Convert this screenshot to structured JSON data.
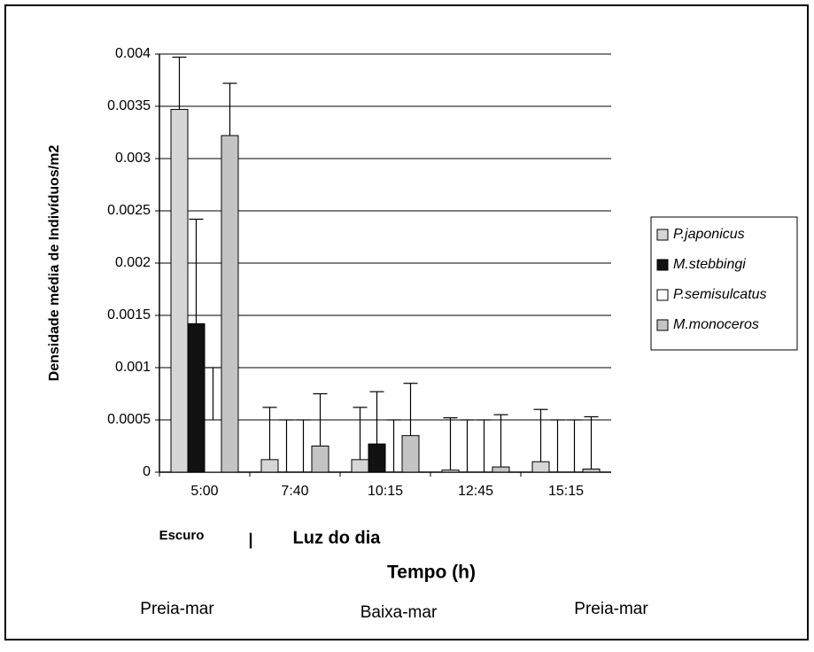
{
  "chart_data": {
    "type": "bar",
    "y_label": "Densidade média de Indivíduos/m2",
    "x_label": "Tempo (h)",
    "categories": [
      "5:00",
      "7:40",
      "10:15",
      "12:45",
      "15:15"
    ],
    "series": [
      {
        "name": "P.japonicus",
        "color": "#d6d6d6",
        "values": [
          0.00347,
          0.00012,
          0.00012,
          2e-05,
          0.0001
        ],
        "errors": [
          0.0005,
          0.0005,
          0.0005,
          0.0005,
          0.0005
        ]
      },
      {
        "name": "M.stebbingi",
        "color": "#111111",
        "values": [
          0.00142,
          0,
          0.00027,
          0,
          0
        ],
        "errors": [
          0.001,
          0.0005,
          0.0005,
          0.0005,
          0.0005
        ]
      },
      {
        "name": "P.semisulcatus",
        "color": "#ffffff",
        "values": [
          0.0005,
          0,
          0,
          0,
          0
        ],
        "errors": [
          0.0005,
          0.0005,
          0.0005,
          0.0005,
          0.0005
        ]
      },
      {
        "name": "M.monoceros",
        "color": "#c4c4c4",
        "values": [
          0.00322,
          0.00025,
          0.00035,
          5e-05,
          3e-05
        ],
        "errors": [
          0.0005,
          0.0005,
          0.0005,
          0.0005,
          0.0005
        ]
      }
    ],
    "ylim": [
      0,
      0.004
    ],
    "yticks": [
      0,
      0.0005,
      0.001,
      0.0015,
      0.002,
      0.0025,
      0.003,
      0.0035,
      0.004
    ],
    "grid": true,
    "legend": "right",
    "annotations": [
      "Escuro",
      "|",
      "Luz do dia",
      "Preia-mar",
      "Baixa-mar",
      "Preia-mar"
    ]
  }
}
